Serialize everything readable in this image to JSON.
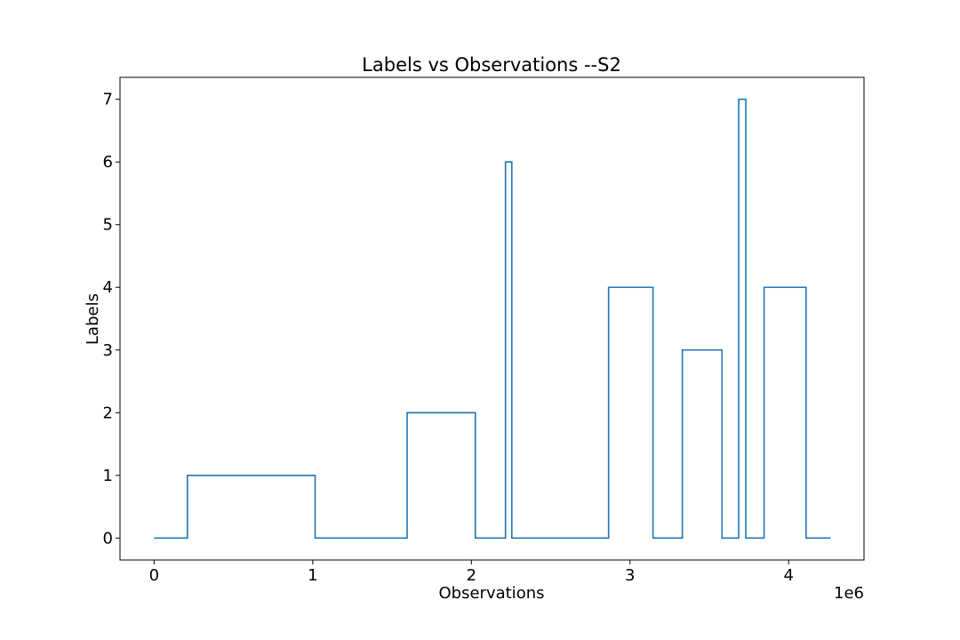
{
  "chart_data": {
    "type": "line",
    "title": "Labels vs Observations --S2",
    "xlabel": "Observations",
    "ylabel": "Labels",
    "x_scale_label": "1e6",
    "xlim": [
      -0.215,
      4.475
    ],
    "ylim": [
      -0.35,
      7.35
    ],
    "x_ticks": [
      0,
      1,
      2,
      3,
      4
    ],
    "x_tick_labels": [
      "0",
      "1",
      "2",
      "3",
      "4"
    ],
    "y_ticks": [
      0,
      1,
      2,
      3,
      4,
      5,
      6,
      7
    ],
    "y_tick_labels": [
      "0",
      "1",
      "2",
      "3",
      "4",
      "5",
      "6",
      "7"
    ],
    "grid": false,
    "series": [
      {
        "color": "#1f77b4",
        "step": "post",
        "x": [
          0,
          0.21,
          1.015,
          1.595,
          2.025,
          2.215,
          2.255,
          2.865,
          3.145,
          3.33,
          3.58,
          3.685,
          3.73,
          3.845,
          4.11,
          4.265
        ],
        "y": [
          0,
          1,
          0,
          2,
          0,
          6,
          0,
          4,
          0,
          3,
          0,
          7,
          0,
          4,
          0,
          0
        ]
      }
    ]
  }
}
